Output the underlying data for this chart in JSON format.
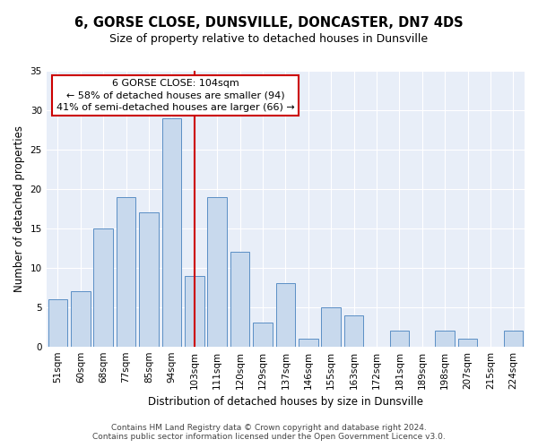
{
  "title1": "6, GORSE CLOSE, DUNSVILLE, DONCASTER, DN7 4DS",
  "title2": "Size of property relative to detached houses in Dunsville",
  "xlabel": "Distribution of detached houses by size in Dunsville",
  "ylabel": "Number of detached properties",
  "categories": [
    "51sqm",
    "60sqm",
    "68sqm",
    "77sqm",
    "85sqm",
    "94sqm",
    "103sqm",
    "111sqm",
    "120sqm",
    "129sqm",
    "137sqm",
    "146sqm",
    "155sqm",
    "163sqm",
    "172sqm",
    "181sqm",
    "189sqm",
    "198sqm",
    "207sqm",
    "215sqm",
    "224sqm"
  ],
  "values": [
    6,
    7,
    15,
    19,
    17,
    29,
    9,
    19,
    12,
    3,
    8,
    1,
    5,
    4,
    0,
    2,
    0,
    2,
    1,
    0,
    2
  ],
  "bar_color": "#c8d9ed",
  "bar_edge_color": "#5b8fc5",
  "property_bin_index": 6,
  "property_label": "6 GORSE CLOSE: 104sqm",
  "annotation_line1": "← 58% of detached houses are smaller (94)",
  "annotation_line2": "41% of semi-detached houses are larger (66) →",
  "vline_color": "#cc0000",
  "annotation_box_edgecolor": "#cc0000",
  "annotation_box_facecolor": "#ffffff",
  "ylim": [
    0,
    35
  ],
  "yticks": [
    0,
    5,
    10,
    15,
    20,
    25,
    30,
    35
  ],
  "fig_bg_color": "#ffffff",
  "plot_bg_color": "#e8eef8",
  "grid_color": "#ffffff",
  "footer1": "Contains HM Land Registry data © Crown copyright and database right 2024.",
  "footer2": "Contains public sector information licensed under the Open Government Licence v3.0.",
  "title1_fontsize": 10.5,
  "title2_fontsize": 9,
  "xlabel_fontsize": 8.5,
  "ylabel_fontsize": 8.5,
  "tick_fontsize": 7.5,
  "footer_fontsize": 6.5,
  "annot_fontsize": 8
}
